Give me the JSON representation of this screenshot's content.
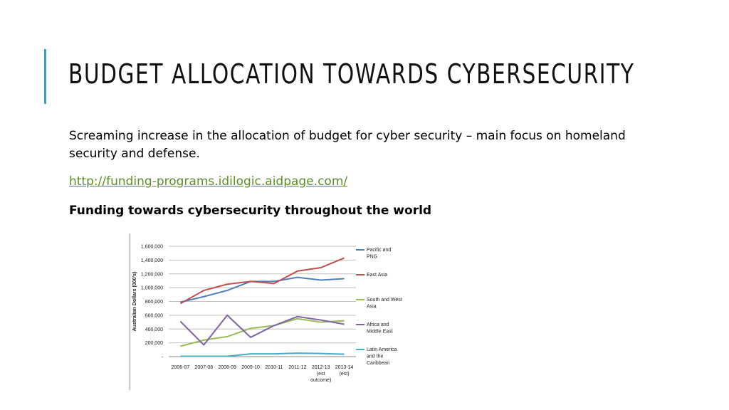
{
  "slide": {
    "title": "BUDGET ALLOCATION TOWARDS CYBERSECURITY",
    "body": "Screaming increase in the allocation of budget for cyber security – main focus on homeland security and defense.",
    "link": "http://funding-programs.idilogic.aidpage.com/",
    "subheading": "Funding towards cybersecurity throughout the world",
    "accent_color": "#3b9fc2",
    "link_color": "#5a8f2a"
  },
  "chart_data": {
    "type": "line",
    "ylabel": "Australian Dollars (000's)",
    "xlabel": "",
    "ylim": [
      0,
      1600000
    ],
    "yticks": [
      "1,600,000",
      "1,400,000",
      "1,200,000",
      "1,000,000",
      "800,000",
      "600,000",
      "400,000",
      "200,000",
      "-"
    ],
    "categories": [
      "2006-07",
      "2007-08",
      "2008-09",
      "2009-10",
      "2010-11",
      "2011-12",
      "2012-13",
      "2013-14"
    ],
    "category_sublabels": [
      "",
      "",
      "",
      "",
      "",
      "",
      "(est\noutcome)",
      "(est)"
    ],
    "grid": true,
    "legend_position": "right",
    "series": [
      {
        "name": "Pacific and PNG",
        "color": "#4f81bd",
        "values": [
          790000,
          870000,
          960000,
          1090000,
          1090000,
          1150000,
          1110000,
          1130000
        ]
      },
      {
        "name": "East Asia",
        "color": "#c0504d",
        "values": [
          770000,
          960000,
          1050000,
          1090000,
          1060000,
          1240000,
          1290000,
          1430000
        ]
      },
      {
        "name": "South and West Asia",
        "color": "#9bbb59",
        "values": [
          150000,
          240000,
          290000,
          410000,
          450000,
          550000,
          500000,
          520000
        ]
      },
      {
        "name": "Africa and Middle East",
        "color": "#8064a2",
        "values": [
          510000,
          170000,
          600000,
          280000,
          450000,
          580000,
          530000,
          470000
        ]
      },
      {
        "name": "Latin America and the Caribbean",
        "color": "#4bacc6",
        "values": [
          5000,
          5000,
          5000,
          40000,
          40000,
          50000,
          45000,
          35000
        ]
      }
    ]
  }
}
